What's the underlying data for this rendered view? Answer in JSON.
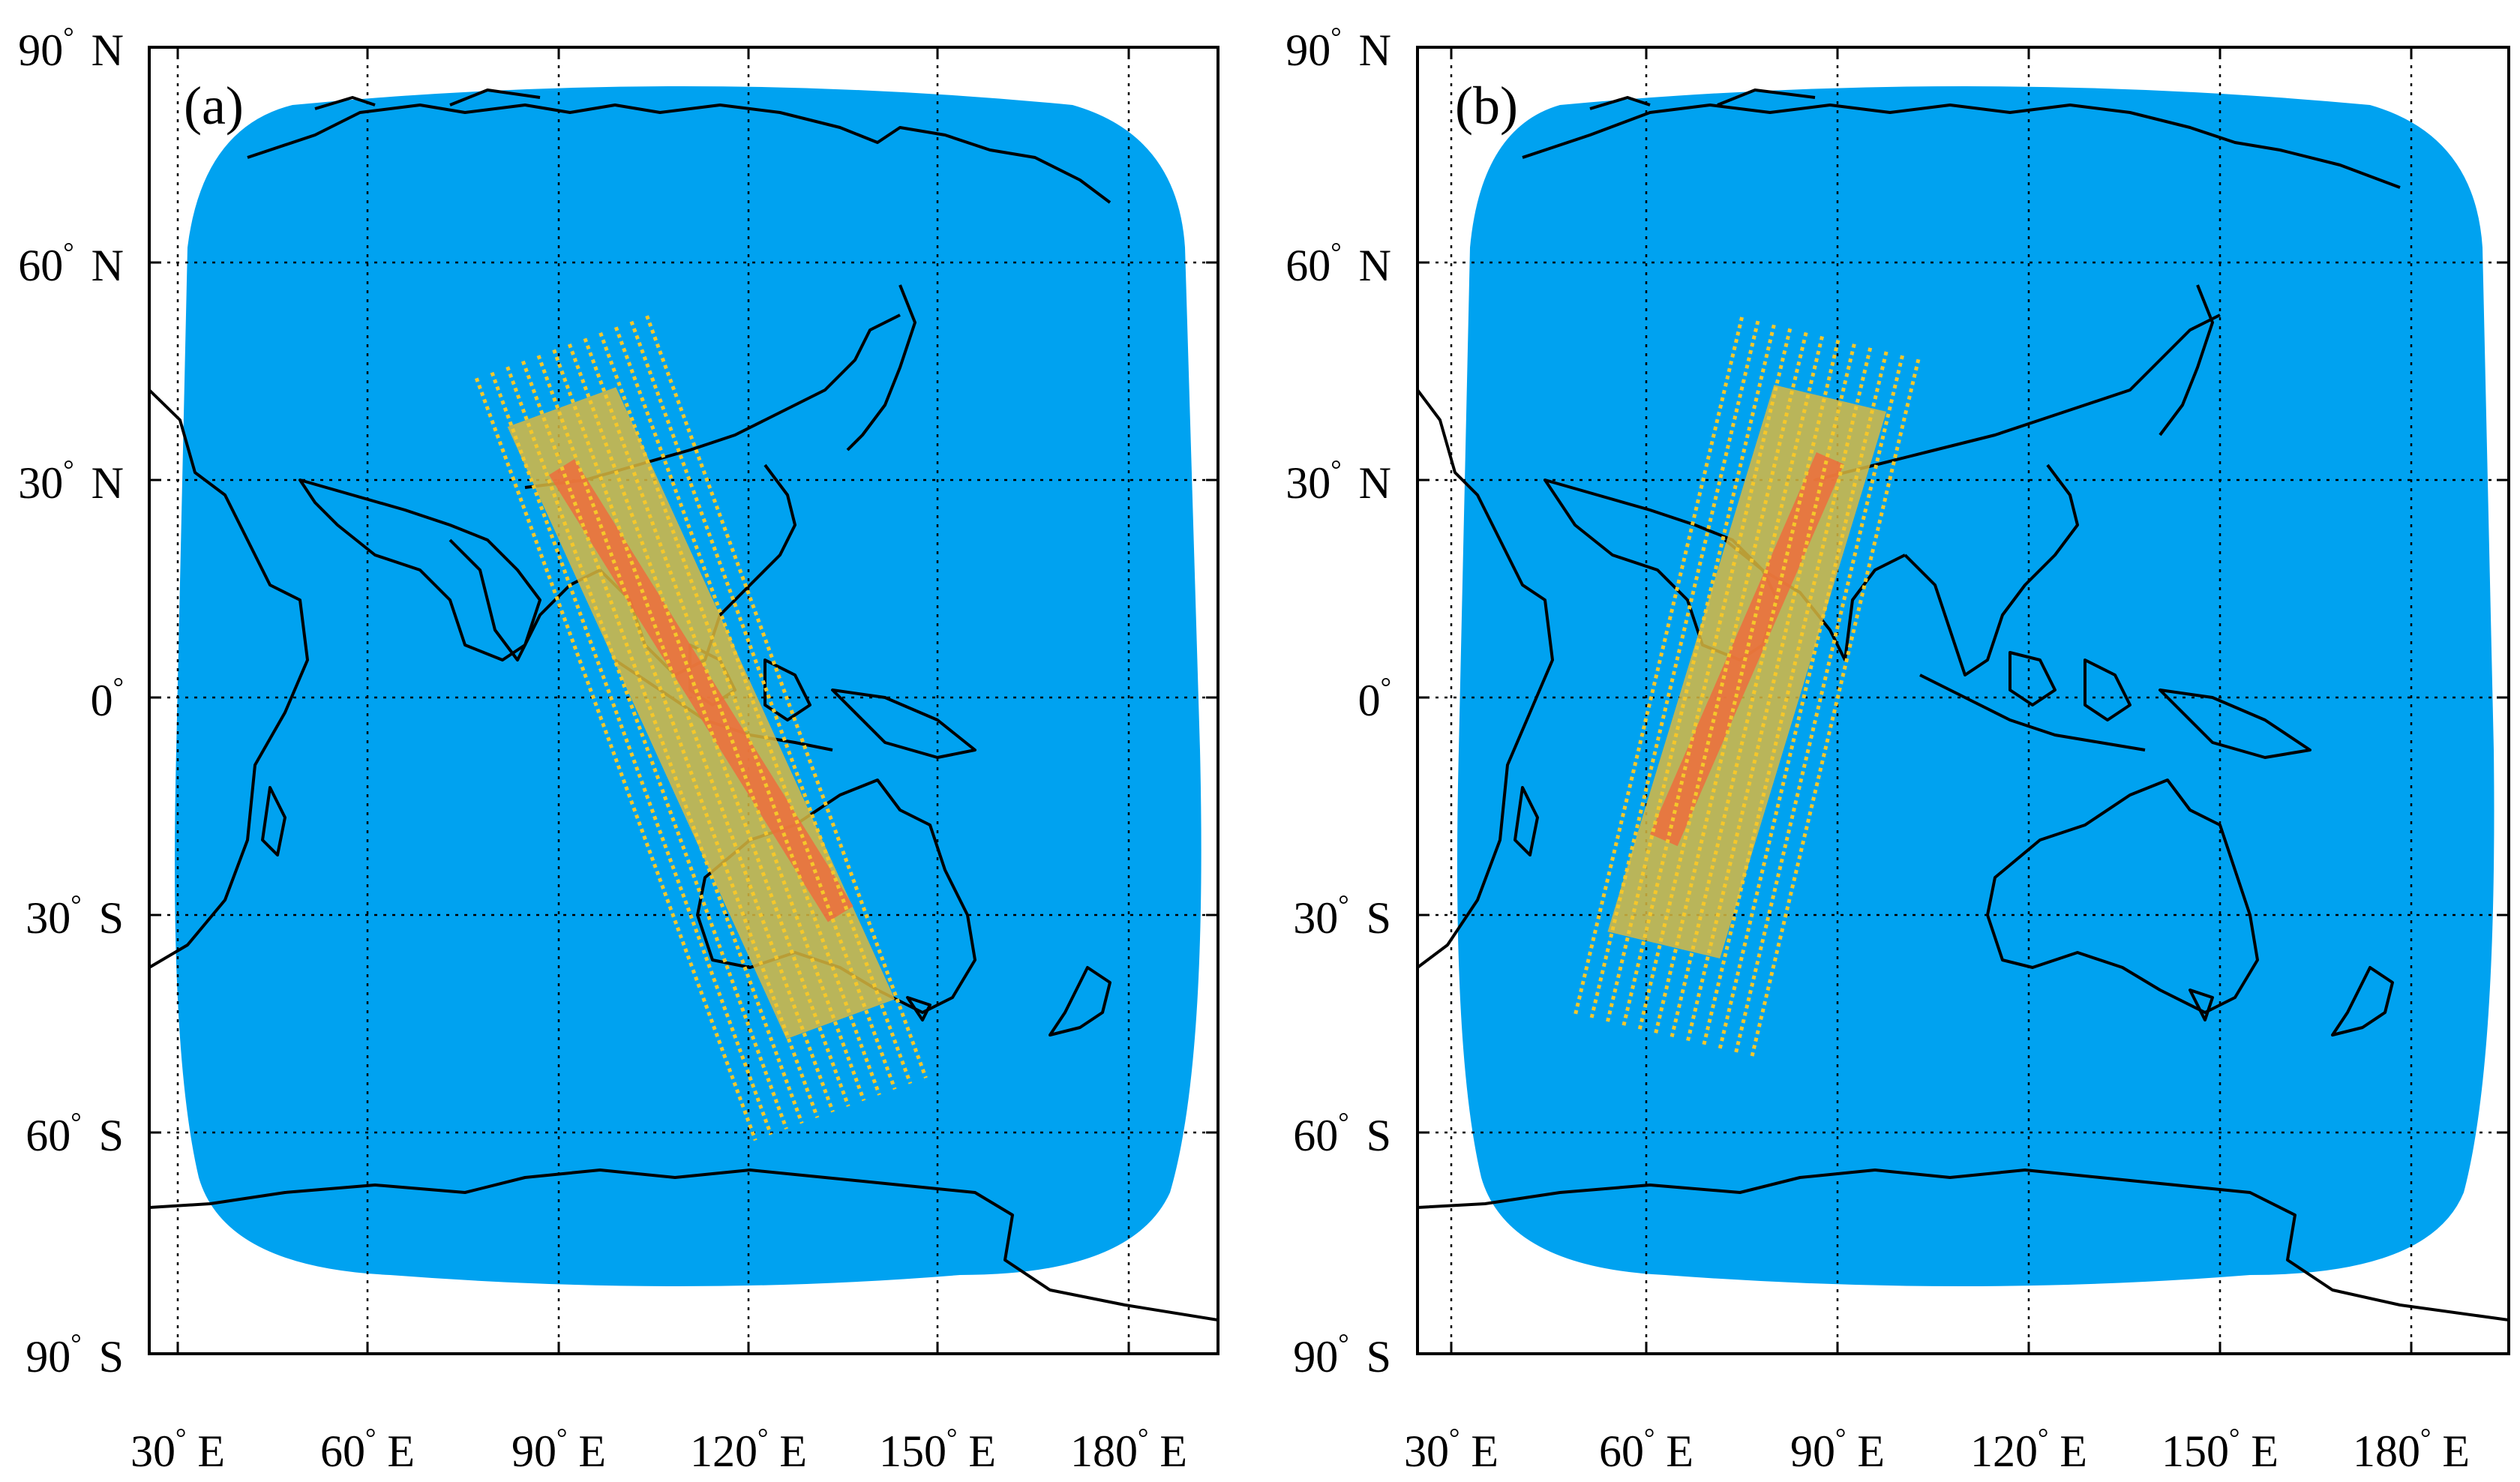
{
  "panels": [
    {
      "label": "(a)",
      "lat_ticks": [
        {
          "deg": "90",
          "hemi": "N"
        },
        {
          "deg": "60",
          "hemi": "N"
        },
        {
          "deg": "30",
          "hemi": "N"
        },
        {
          "deg": "0",
          "hemi": ""
        },
        {
          "deg": "30",
          "hemi": "S"
        },
        {
          "deg": "60",
          "hemi": "S"
        },
        {
          "deg": "90",
          "hemi": "S"
        }
      ],
      "lon_ticks": [
        {
          "deg": "30",
          "hemi": "E"
        },
        {
          "deg": "60",
          "hemi": "E"
        },
        {
          "deg": "90",
          "hemi": "E"
        },
        {
          "deg": "120",
          "hemi": "E"
        },
        {
          "deg": "150",
          "hemi": "E"
        },
        {
          "deg": "180",
          "hemi": "E"
        }
      ],
      "swath": {
        "north_lon": 104,
        "north_lat": 53,
        "south_lon": 148,
        "south_lat": -52
      }
    },
    {
      "label": "(b)",
      "lat_ticks": [
        {
          "deg": "90",
          "hemi": "N"
        },
        {
          "deg": "60",
          "hemi": "N"
        },
        {
          "deg": "30",
          "hemi": "N"
        },
        {
          "deg": "0",
          "hemi": ""
        },
        {
          "deg": "30",
          "hemi": "S"
        },
        {
          "deg": "60",
          "hemi": "S"
        },
        {
          "deg": "90",
          "hemi": "S"
        }
      ],
      "lon_ticks": [
        {
          "deg": "30",
          "hemi": "E"
        },
        {
          "deg": "60",
          "hemi": "E"
        },
        {
          "deg": "90",
          "hemi": "E"
        },
        {
          "deg": "120",
          "hemi": "E"
        },
        {
          "deg": "150",
          "hemi": "E"
        },
        {
          "deg": "180",
          "hemi": "E"
        }
      ],
      "swath": {
        "north_lon": 103,
        "north_lat": 47,
        "south_lon": 77,
        "south_lat": -49
      }
    }
  ],
  "colors": {
    "coverage": "#00a2f0",
    "swath_line": "#f5c72a",
    "swath_core": "#f26a3c",
    "swath_fill": "#d9b840",
    "coastline": "#000000",
    "grid": "#000000",
    "frame": "#000000"
  }
}
